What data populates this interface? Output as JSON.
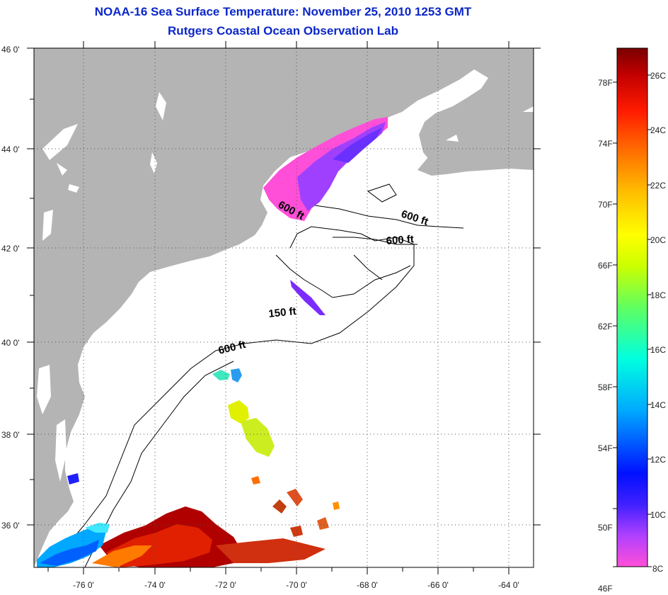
{
  "title": "NOAA-16 Sea Surface Temperature:  November 25, 2010 1253 GMT",
  "subtitle": "Rutgers Coastal Ocean Observation Lab",
  "map": {
    "lon_range": [
      -77,
      -63
    ],
    "lat_range": [
      35,
      46
    ],
    "lat_ticks": [
      "46 0'",
      "44 0'",
      "42 0'",
      "40 0'",
      "38 0'",
      "36 0'"
    ],
    "lon_ticks": [
      "-76 0'",
      "-74 0'",
      "-72 0'",
      "-70 0'",
      "-68 0'",
      "-66 0'",
      "-64 0'"
    ],
    "contour_labels": [
      "600 ft",
      "600 ft",
      "600 ft",
      "150 ft",
      "600 ft"
    ]
  },
  "colorbar": {
    "fahrenheit_labels": [
      "78F",
      "74F",
      "70F",
      "66F",
      "62F",
      "58F",
      "54F",
      "50F",
      "46F"
    ],
    "celsius_labels": [
      "26C",
      "24C",
      "22C",
      "20C",
      "18C",
      "16C",
      "14C",
      "12C",
      "10C",
      "8C"
    ],
    "colors": [
      "#ff4fd8",
      "#7b2cff",
      "#0010ff",
      "#00c8ff",
      "#36ffb0",
      "#ccff00",
      "#ffd800",
      "#ff7a00",
      "#ff1a00",
      "#b00000",
      "#7a0000"
    ]
  }
}
